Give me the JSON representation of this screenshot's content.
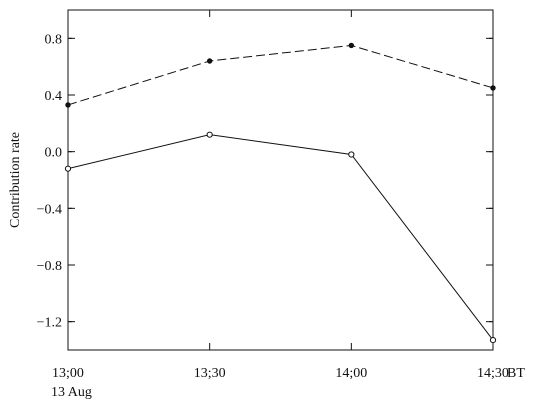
{
  "chart_data": {
    "type": "line",
    "title": "",
    "ylabel": "Contribution rate",
    "xlabel": "",
    "x_categories": [
      "13:00",
      "13:30",
      "14:00",
      "14:30"
    ],
    "x_tick_labels": [
      "13;00",
      "13;30",
      "14;00",
      "14;30"
    ],
    "x_unit_label": "BT",
    "x_sub_label": "13 Aug",
    "ylim": [
      -1.4,
      1.0
    ],
    "y_ticks": [
      0.8,
      0.4,
      0.0,
      -0.4,
      -0.8,
      -1.2
    ],
    "y_tick_labels": [
      "0.8",
      "0.4",
      "0.0",
      "−0.4",
      "−0.8",
      "−1.2"
    ],
    "grid": false,
    "series": [
      {
        "values": [
          0.33,
          0.64,
          0.75,
          0.45
        ],
        "line_style": "dashed",
        "marker": "filled-dot",
        "color": "#111111"
      },
      {
        "values": [
          -0.12,
          0.12,
          -0.02,
          -1.33
        ],
        "line_style": "solid",
        "marker": "open-circle",
        "color": "#111111"
      }
    ]
  }
}
